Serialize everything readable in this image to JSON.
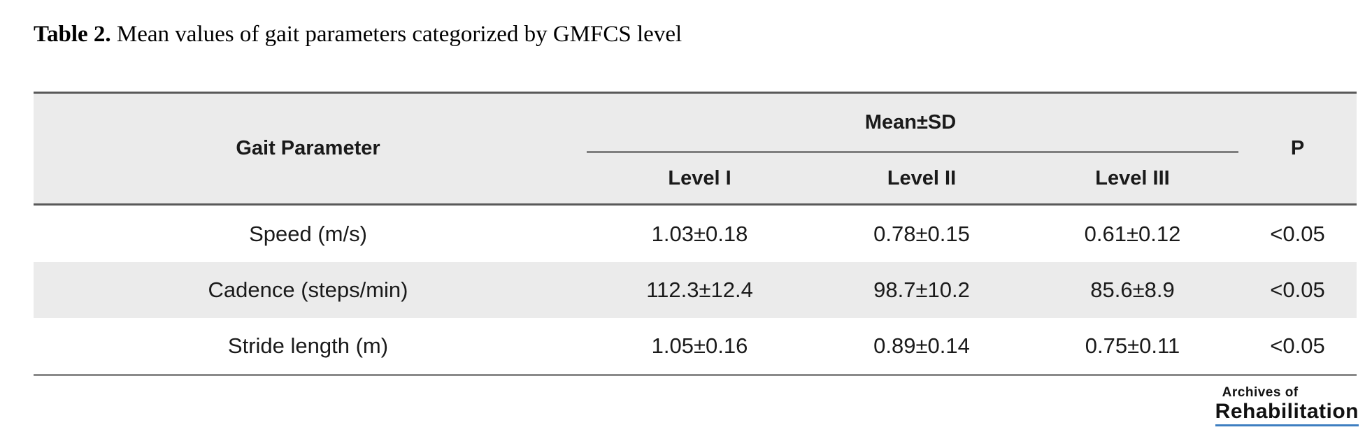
{
  "caption": {
    "label": "Table 2.",
    "text": " Mean values of gait parameters categorized by GMFCS level"
  },
  "table": {
    "header": {
      "parameter": "Gait Parameter",
      "group": "Mean±SD",
      "levels": [
        "Level I",
        "Level II",
        "Level III"
      ],
      "p": "P"
    },
    "rows": [
      {
        "parameter": "Speed (m/s)",
        "level1": "1.03±0.18",
        "level2": "0.78±0.15",
        "level3": "0.61±0.12",
        "p": "<0.05"
      },
      {
        "parameter": "Cadence (steps/min)",
        "level1": "112.3±12.4",
        "level2": "98.7±10.2",
        "level3": "85.6±8.9",
        "p": "<0.05"
      },
      {
        "parameter": "Stride length (m)",
        "level1": "1.05±0.16",
        "level2": "0.89±0.14",
        "level3": "0.75±0.11",
        "p": "<0.05"
      }
    ]
  },
  "logo": {
    "line1": "Archives of",
    "line2": "Rehabilitation"
  },
  "colors": {
    "header_bg": "#ebebeb",
    "alt_row_bg": "#ebebeb",
    "border_dark": "#595959",
    "border_mid": "#7f7f7f",
    "border_bottom": "#8a8a8a",
    "logo_underline": "#3e7ec1"
  }
}
